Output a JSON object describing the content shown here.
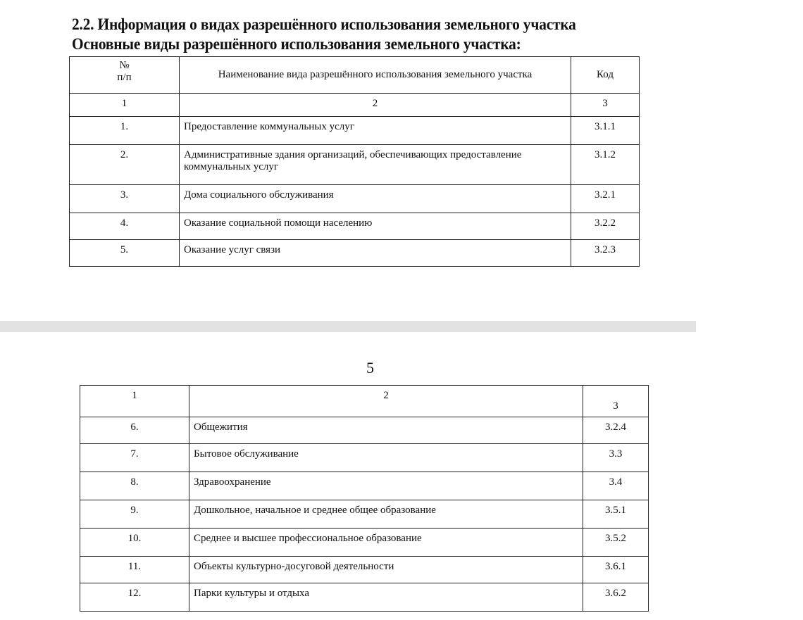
{
  "heading1": "2.2. Информация о видах разрешённого использования земельного участка",
  "heading2": "Основные виды разрешённого использования земельного участка:",
  "table1": {
    "headers": [
      "№\nп/п",
      "Наименование вида разрешённого использования земельного участка",
      "Код"
    ],
    "colnums": [
      "1",
      "2",
      "3"
    ],
    "rows": [
      [
        "1.",
        "Предоставление коммунальных услуг",
        "3.1.1"
      ],
      [
        "2.",
        "Административные здания организаций, обеспечивающих предоставление коммунальных услуг",
        "3.1.2"
      ],
      [
        "3.",
        "Дома социального обслуживания",
        "3.2.1"
      ],
      [
        "4.",
        "Оказание социальной помощи населению",
        "3.2.2"
      ],
      [
        "5.",
        "Оказание услуг связи",
        "3.2.3"
      ]
    ]
  },
  "page_number": "5",
  "table2": {
    "colnums": [
      "1",
      "2",
      "3"
    ],
    "rows": [
      [
        "6.",
        "Общежития",
        "3.2.4"
      ],
      [
        "7.",
        "Бытовое обслуживание",
        "3.3"
      ],
      [
        "8.",
        "Здравоохранение",
        "3.4"
      ],
      [
        "9.",
        "Дошкольное, начальное и среднее общее образование",
        "3.5.1"
      ],
      [
        "10.",
        "Среднее и высшее профессиональное образование",
        "3.5.2"
      ],
      [
        "11.",
        "Объекты культурно-досуговой деятельности",
        "3.6.1"
      ],
      [
        "12.",
        "Парки культуры и отдыха",
        "3.6.2"
      ]
    ]
  }
}
